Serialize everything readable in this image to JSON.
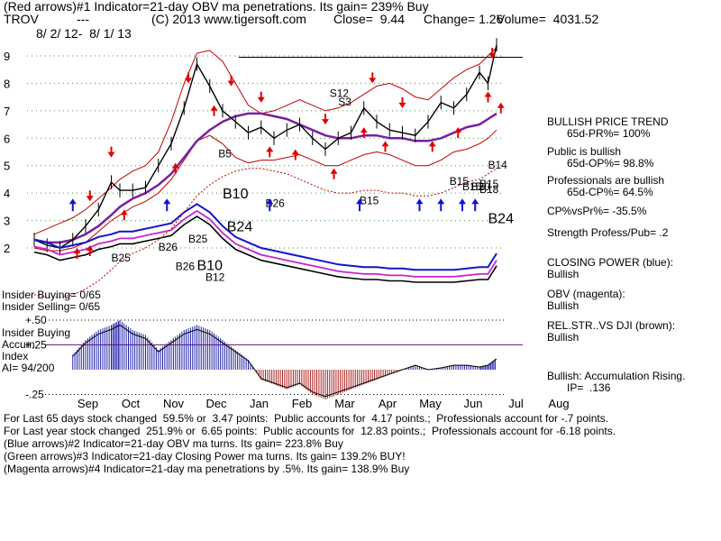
{
  "header": {
    "line1": "(Red arrows)#1 Indicator=21-day OBV ma penetrations. Its gain= 239% Buy",
    "ticker": "TROV",
    "dash": "---",
    "copyright": "(C) 2013 www.tigersoft.com",
    "close": "Close=  9.44",
    "change": "Change= 1.26",
    "volume": "Volume=  4031.52",
    "date_range": "8/ 2/ 12-  8/ 1/ 13"
  },
  "chart_data": {
    "type": "line",
    "x_tick_labels": [
      "Sep",
      "Oct",
      "Nov",
      "Dec",
      "Jan",
      "Feb",
      "Mar",
      "Apr",
      "May",
      "Jun",
      "Jul",
      "Aug"
    ],
    "y_tick_labels": [
      "9",
      "8",
      "7",
      "6",
      "5",
      "4",
      "3",
      "2"
    ],
    "ylim": [
      1.5,
      9.5
    ],
    "price_series": {
      "name": "Price",
      "x": [
        0,
        0.3,
        0.6,
        0.9,
        1.2,
        1.5,
        1.8,
        2.0,
        2.3,
        2.6,
        2.9,
        3.2,
        3.5,
        3.8,
        4.1,
        4.4,
        4.7,
        5.0,
        5.3,
        5.6,
        5.9,
        6.2,
        6.5,
        6.8,
        7.1,
        7.4,
        7.7,
        8.0,
        8.3,
        8.6,
        8.9,
        9.2,
        9.5,
        9.8,
        10.1,
        10.4,
        10.6,
        10.8
      ],
      "values": [
        2.3,
        2.1,
        2.0,
        2.3,
        2.8,
        3.4,
        4.4,
        4.1,
        4.1,
        4.2,
        5.0,
        5.8,
        7.1,
        8.7,
        7.9,
        7.0,
        6.6,
        6.2,
        6.4,
        6.0,
        6.3,
        6.5,
        6.0,
        5.6,
        6.0,
        6.2,
        7.1,
        6.6,
        6.3,
        6.2,
        6.1,
        6.6,
        7.3,
        7.1,
        7.6,
        8.4,
        8.0,
        9.4
      ]
    },
    "bands": {
      "upper": [
        2.5,
        2.7,
        2.9,
        3.1,
        3.4,
        3.8,
        4.2,
        4.5,
        4.8,
        5.0,
        5.5,
        6.6,
        8.0,
        9.1,
        9.2,
        8.8,
        8.0,
        7.2,
        6.9,
        7.0,
        7.2,
        7.4,
        7.2,
        7.0,
        7.1,
        7.3,
        7.6,
        7.9,
        8.0,
        7.8,
        7.5,
        7.4,
        7.8,
        8.2,
        8.5,
        8.7,
        9.0,
        9.3
      ],
      "lower": [
        2.0,
        1.9,
        1.9,
        2.0,
        2.2,
        2.6,
        3.0,
        3.2,
        3.5,
        3.7,
        4.0,
        4.5,
        5.2,
        5.9,
        6.1,
        5.8,
        5.3,
        5.1,
        5.2,
        5.2,
        5.3,
        5.4,
        5.2,
        5.0,
        5.0,
        5.2,
        5.4,
        5.5,
        5.4,
        5.2,
        5.0,
        5.0,
        5.2,
        5.5,
        5.6,
        5.8,
        6.0,
        6.3
      ],
      "ma": [
        2.3,
        2.2,
        2.2,
        2.3,
        2.5,
        2.8,
        3.2,
        3.5,
        3.8,
        4.0,
        4.3,
        4.7,
        5.3,
        5.9,
        6.3,
        6.6,
        6.8,
        6.9,
        6.9,
        6.8,
        6.7,
        6.5,
        6.3,
        6.1,
        6.0,
        6.0,
        6.1,
        6.1,
        6.0,
        6.0,
        5.9,
        5.9,
        6.0,
        6.2,
        6.4,
        6.5,
        6.7,
        6.9
      ]
    },
    "closing_power_series": {
      "name": "CLOSING POWER (blue)",
      "values": [
        2.3,
        2.2,
        2.0,
        2.1,
        2.2,
        2.4,
        2.5,
        2.6,
        2.6,
        2.7,
        2.8,
        2.9,
        3.3,
        3.6,
        3.3,
        2.8,
        2.4,
        2.2,
        2.0,
        1.9,
        1.8,
        1.7,
        1.6,
        1.5,
        1.4,
        1.35,
        1.3,
        1.3,
        1.25,
        1.25,
        1.2,
        1.2,
        1.2,
        1.2,
        1.25,
        1.3,
        1.3,
        1.8
      ]
    },
    "signals": [
      {
        "label": "B25",
        "x": 1.8,
        "y": 1.5
      },
      {
        "label": "B26",
        "x": 2.9,
        "y": 1.9
      },
      {
        "label": "B25",
        "x": 3.6,
        "y": 2.2
      },
      {
        "label": "B5",
        "x": 4.3,
        "y": 5.3
      },
      {
        "label": "B10",
        "x": 4.4,
        "y": 3.8
      },
      {
        "label": "B24",
        "x": 4.5,
        "y": 2.6
      },
      {
        "label": "B26",
        "x": 5.4,
        "y": 3.5
      },
      {
        "label": "B26",
        "x": 3.3,
        "y": 1.2
      },
      {
        "label": "B10",
        "x": 3.8,
        "y": 1.2
      },
      {
        "label": "B12",
        "x": 4.0,
        "y": 0.8
      },
      {
        "label": "S12",
        "x": 6.9,
        "y": 7.5
      },
      {
        "label": "S3",
        "x": 7.1,
        "y": 7.2
      },
      {
        "label": "B15",
        "x": 7.6,
        "y": 3.6
      },
      {
        "label": "B15",
        "x": 9.7,
        "y": 4.3
      },
      {
        "label": "B15",
        "x": 10.0,
        "y": 4.1
      },
      {
        "label": "B20",
        "x": 10.2,
        "y": 4.1
      },
      {
        "label": "B15",
        "x": 10.4,
        "y": 4.2
      },
      {
        "label": "B18",
        "x": 10.4,
        "y": 4.0
      },
      {
        "label": "B14",
        "x": 10.6,
        "y": 4.9
      },
      {
        "label": "B24",
        "x": 10.6,
        "y": 2.9
      }
    ],
    "accumulation_index": {
      "name": "Accum Index",
      "labels": [
        "+.50",
        "+.25",
        "-.25"
      ],
      "x": [
        0.9,
        1.2,
        1.5,
        1.8,
        2.0,
        2.3,
        2.6,
        2.9,
        3.2,
        3.5,
        3.8,
        4.1,
        4.4,
        4.7,
        5.0,
        5.3,
        5.6,
        5.9,
        6.2,
        6.5,
        6.8,
        7.1,
        7.4,
        7.7,
        8.0,
        8.3,
        8.6,
        8.9,
        9.2,
        9.5,
        9.8,
        10.1,
        10.4,
        10.6,
        10.8
      ],
      "values": [
        0.15,
        0.3,
        0.4,
        0.45,
        0.5,
        0.4,
        0.35,
        0.2,
        0.3,
        0.4,
        0.45,
        0.4,
        0.3,
        0.2,
        0.1,
        -0.1,
        -0.15,
        -0.2,
        -0.15,
        -0.25,
        -0.3,
        -0.25,
        -0.2,
        -0.15,
        -0.1,
        -0.05,
        0.0,
        0.05,
        0.0,
        0.02,
        0.05,
        0.05,
        0.03,
        0.05,
        0.12
      ]
    }
  },
  "labels": {
    "insider_buying": "Insider Buying= 0/65",
    "insider_selling": "Insider Selling= 0/65",
    "insider_buying_2": "Insider Buying",
    "accum": "Accum",
    "index": "Index",
    "ai": "AI= 94/200"
  },
  "right_panel": {
    "bullish_price_trend": "BULLISH PRICE TREND",
    "pr": "65d-PR%= 100%",
    "public_is_bullish": "Public is bullish",
    "op": "65d-OP%= 98.8%",
    "professionals_are_bullish": "Professionals are bullish",
    "cp": "65d-CP%= 64.5%",
    "cpvspr": "CP%vsPr%= -35.5%",
    "strength": "Strength Profess/Pub= .2",
    "closing_power": "CLOSING POWER (blue):",
    "closing_power_val": "Bullish",
    "obv": "OBV (magenta):",
    "obv_val": "Bullish",
    "relstr": "REL.STR..VS DJI (brown):",
    "relstr_val": "Bullish",
    "accum_rising": "Bullish: Accumulation Rising.",
    "ip": "IP=  .136"
  },
  "footer": {
    "line1": "For Last 65 days stock changed  59.5% or  3.47 points:  Public accounts for  4.17 points.;  Professionals account for -.7 points.",
    "line2": "For Last year stock changed  251.9% or  6.65 points:  Public accounts for  12.83 points.;  Professionals account for -6.18 points.",
    "line3": "(Blue arrows)#2 Indicator=21-day OBV ma turns. Its gain= 223.8% Buy",
    "line4": "(Green arrows)#3 Indicator=21-day Closing Power ma turns. Its gain= 139.2% BUY!",
    "line5": "(Magenta arrows)#4 Indicator=21-day ma penetrations by .5%. Its gain= 138.9% Buy"
  },
  "colors": {
    "price": "#000000",
    "band": "#c00000",
    "ma": "#7a1fa2",
    "closing_power": "#1414c8",
    "obv": "#cc22cc",
    "accum_pos": "#2020aa",
    "accum_neg": "#aa2020",
    "grid": "#3a9a3a",
    "arrow_red": "#e00000",
    "arrow_blue": "#1010d0"
  }
}
